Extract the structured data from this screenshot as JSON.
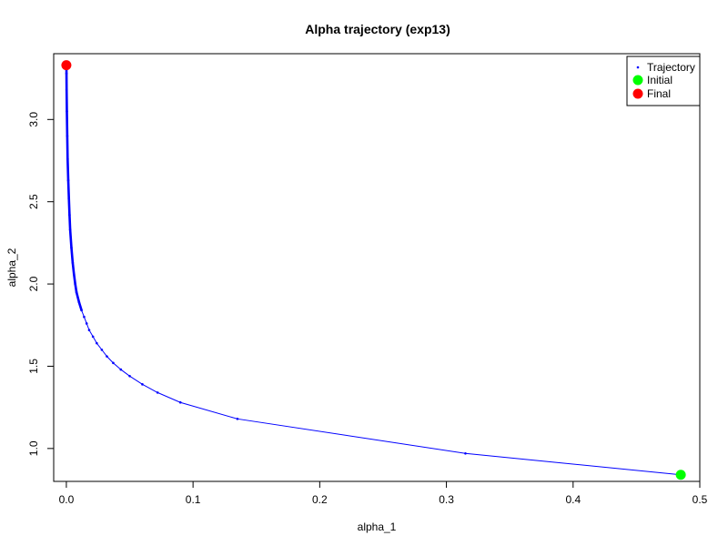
{
  "chart_data": {
    "type": "scatter",
    "title": "Alpha trajectory (exp13)",
    "xlabel": "alpha_1",
    "ylabel": "alpha_2",
    "xlim": [
      -0.01,
      0.5
    ],
    "ylim": [
      0.8,
      3.4
    ],
    "x_ticks": [
      0.0,
      0.1,
      0.2,
      0.3,
      0.4,
      0.5
    ],
    "x_tick_labels": [
      "0.0",
      "0.1",
      "0.2",
      "0.3",
      "0.4",
      "0.5"
    ],
    "y_ticks": [
      1.0,
      1.5,
      2.0,
      2.5,
      3.0
    ],
    "y_tick_labels": [
      "1.0",
      "1.5",
      "2.0",
      "2.5",
      "3.0"
    ],
    "legend_position": "top-right",
    "grid": false,
    "series": [
      {
        "name": "Trajectory",
        "color": "#0000FF",
        "marker": "dot",
        "x": [
          0.485,
          0.315,
          0.135,
          0.09,
          0.072,
          0.06,
          0.05,
          0.043,
          0.037,
          0.032,
          0.028,
          0.024,
          0.021,
          0.018,
          0.016,
          0.014,
          0.012,
          0.01,
          0.008,
          0.007,
          0.006,
          0.005,
          0.004,
          0.003,
          0.0025,
          0.002,
          0.0015,
          0.001,
          0.0007,
          0.0004,
          0.0002,
          0.0001,
          5e-05
        ],
        "y": [
          0.84,
          0.97,
          1.18,
          1.28,
          1.34,
          1.39,
          1.44,
          1.48,
          1.52,
          1.56,
          1.6,
          1.64,
          1.68,
          1.72,
          1.76,
          1.8,
          1.84,
          1.89,
          1.95,
          2.0,
          2.06,
          2.13,
          2.22,
          2.33,
          2.42,
          2.52,
          2.63,
          2.76,
          2.9,
          3.05,
          3.18,
          3.28,
          3.33
        ]
      },
      {
        "name": "Initial",
        "color": "#00FF00",
        "marker": "circle",
        "x": [
          0.485
        ],
        "y": [
          0.84
        ]
      },
      {
        "name": "Final",
        "color": "#FF0000",
        "marker": "circle",
        "x": [
          0.0
        ],
        "y": [
          3.33
        ]
      }
    ]
  }
}
